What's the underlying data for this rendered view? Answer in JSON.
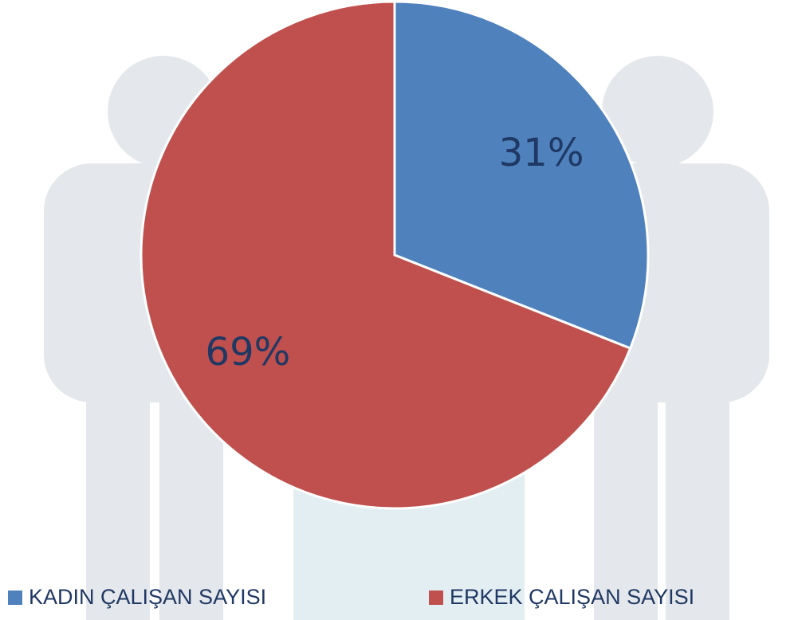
{
  "chart_data": {
    "type": "pie",
    "categories": [
      "KADIN ÇALIŞAN SAYISI",
      "ERKEK ÇALIŞAN SAYISI"
    ],
    "values": [
      31,
      69
    ],
    "value_labels": [
      "31%",
      "69%"
    ],
    "colors": [
      "#4f81bd",
      "#c0504d"
    ]
  }
}
